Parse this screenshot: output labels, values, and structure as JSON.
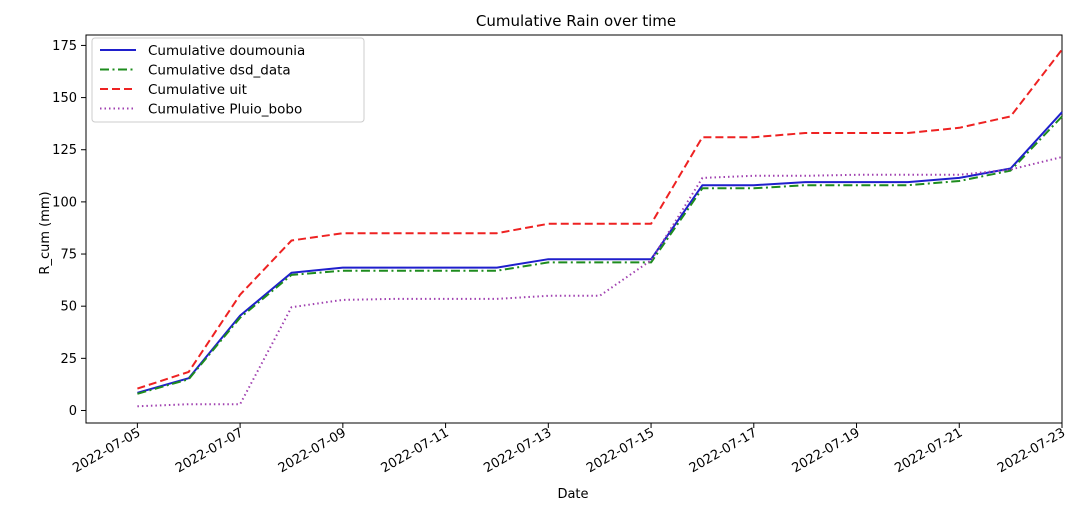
{
  "chart_data": {
    "type": "line",
    "title": "Cumulative Rain over time",
    "xlabel": "Date",
    "ylabel": "R_cum (mm)",
    "x": [
      "2022-07-05",
      "2022-07-06",
      "2022-07-07",
      "2022-07-08",
      "2022-07-09",
      "2022-07-10",
      "2022-07-11",
      "2022-07-12",
      "2022-07-13",
      "2022-07-14",
      "2022-07-15",
      "2022-07-16",
      "2022-07-17",
      "2022-07-18",
      "2022-07-19",
      "2022-07-20",
      "2022-07-21",
      "2022-07-22",
      "2022-07-23"
    ],
    "x_ticks": [
      "2022-07-05",
      "2022-07-07",
      "2022-07-09",
      "2022-07-11",
      "2022-07-13",
      "2022-07-15",
      "2022-07-17",
      "2022-07-19",
      "2022-07-21",
      "2022-07-23"
    ],
    "xlim": [
      "2022-07-04",
      "2022-07-23"
    ],
    "y_ticks": [
      0,
      25,
      50,
      75,
      100,
      125,
      150,
      175
    ],
    "ylim": [
      -6,
      180
    ],
    "grid": false,
    "legend_position": "top-left",
    "series": [
      {
        "name": "Cumulative doumounia",
        "color": "#1f1fcc",
        "style": "solid",
        "values": [
          8.5,
          15.5,
          45.5,
          66,
          68.5,
          68.5,
          68.5,
          68.5,
          72.5,
          72.5,
          72.5,
          108,
          108,
          109.5,
          109.5,
          109.5,
          111.5,
          116,
          143
        ]
      },
      {
        "name": "Cumulative dsd_data",
        "color": "#1e8c1e",
        "style": "dashdot",
        "values": [
          8,
          15,
          44.5,
          65,
          67,
          67,
          67,
          67,
          71,
          71,
          71,
          106.5,
          106.5,
          108,
          108,
          108,
          110,
          115,
          141
        ]
      },
      {
        "name": "Cumulative uit",
        "color": "#ee2222",
        "style": "dashed",
        "values": [
          10.5,
          18.5,
          55.5,
          81.5,
          85,
          85,
          85,
          85,
          89.5,
          89.5,
          89.5,
          131,
          131,
          133,
          133,
          133,
          135.5,
          141,
          173
        ]
      },
      {
        "name": "Cumulative Pluio_bobo",
        "color": "#a040b0",
        "style": "dotted",
        "values": [
          2,
          3,
          3,
          49.5,
          53,
          53.5,
          53.5,
          53.5,
          55,
          55,
          72,
          111.5,
          112.5,
          112.5,
          113,
          113,
          113,
          115.5,
          121.5
        ]
      }
    ]
  }
}
